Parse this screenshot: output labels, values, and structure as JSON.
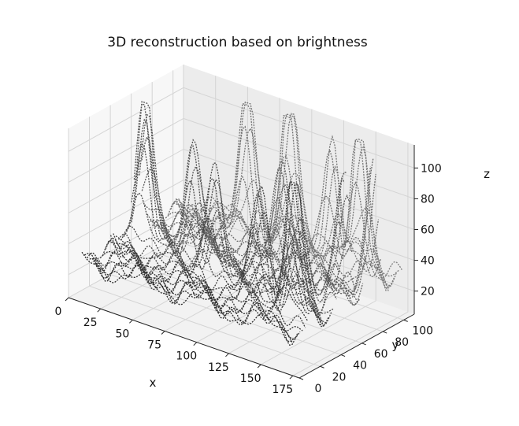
{
  "chart_data": {
    "type": "surface3d",
    "title": "3D reconstruction based on brightness",
    "xlabel": "x",
    "ylabel": "y",
    "zlabel": "z",
    "xlim": [
      0,
      180
    ],
    "ylim": [
      0,
      110
    ],
    "zlim": [
      5,
      115
    ],
    "x_ticks": [
      "0",
      "25",
      "50",
      "75",
      "100",
      "125",
      "150",
      "175"
    ],
    "y_ticks": [
      "0",
      "20",
      "40",
      "60",
      "80",
      "100"
    ],
    "z_ticks": [
      "20",
      "40",
      "60",
      "80",
      "100"
    ],
    "grid": true,
    "colormap": "grayscale (dark = high)",
    "peaks": [
      {
        "x": 15,
        "y": 55,
        "z": 98
      },
      {
        "x": 20,
        "y": 48,
        "z": 82
      },
      {
        "x": 55,
        "y": 52,
        "z": 88
      },
      {
        "x": 65,
        "y": 92,
        "z": 108
      },
      {
        "x": 95,
        "y": 95,
        "z": 115
      },
      {
        "x": 80,
        "y": 40,
        "z": 80
      },
      {
        "x": 110,
        "y": 70,
        "z": 85
      },
      {
        "x": 130,
        "y": 92,
        "z": 92
      },
      {
        "x": 125,
        "y": 30,
        "z": 85
      },
      {
        "x": 150,
        "y": 95,
        "z": 105
      },
      {
        "x": 175,
        "y": 80,
        "z": 110
      },
      {
        "x": 155,
        "y": 25,
        "z": 112
      },
      {
        "x": 170,
        "y": 55,
        "z": 95
      },
      {
        "x": 140,
        "y": 50,
        "z": 60
      }
    ]
  }
}
